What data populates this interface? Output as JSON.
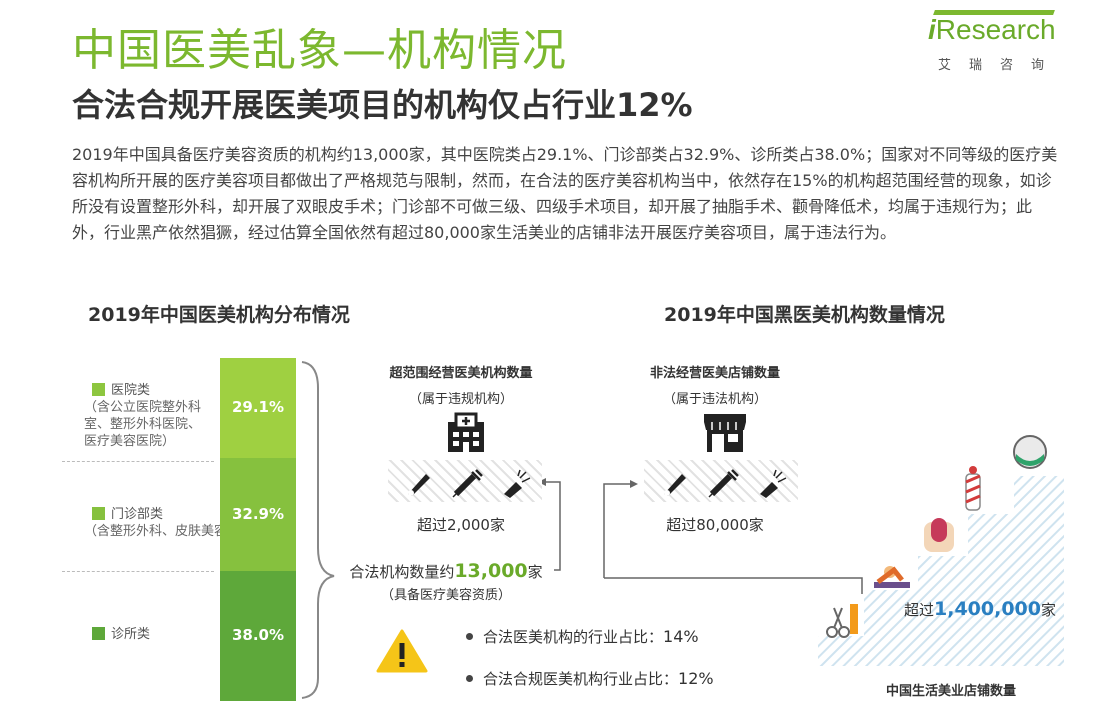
{
  "header": {
    "title": "中国医美乱象—机构情况",
    "subtitle": "合法合规开展医美项目的机构仅占行业12%",
    "logo_text": "Research",
    "logo_i": "i",
    "logo_cn": "艾瑞咨询"
  },
  "paragraph": "2019年中国具备医疗美容资质的机构约13,000家，其中医院类占29.1%、门诊部类占32.9%、诊所类占38.0%；国家对不同等级的医疗美容机构所开展的医疗美容项目都做出了严格规范与限制，然而，在合法的医疗美容机构当中，依然存在15%的机构超范围经营的现象，如诊所没有设置整形外科，却开展了双眼皮手术；门诊部不可做三级、四级手术项目，却开展了抽脂手术、颧骨降低术，均属于违规行为；此外，行业黑产依然猖獗，经过估算全国依然有超过80,000家生活美业的店铺非法开展医疗美容项目，属于违法行为。",
  "chart_data": [
    {
      "type": "bar",
      "title": "2019年中国医美机构分布情况",
      "stacked": true,
      "unit": "%",
      "categories": [
        "医院类",
        "门诊部类",
        "诊所类"
      ],
      "values": [
        29.1,
        32.9,
        38.0
      ],
      "value_labels": [
        "29.1%",
        "32.9%",
        "38.0%"
      ],
      "colors": [
        "#9fd041",
        "#86c13e",
        "#5ea83a"
      ],
      "legend": [
        {
          "label": "医院类",
          "note": "（含公立医院整外科室、整形外科医院、医疗美容医院）"
        },
        {
          "label": "门诊部类",
          "note": "（含整形外科、皮肤美容）"
        },
        {
          "label": "诊所类",
          "note": ""
        }
      ]
    },
    {
      "type": "diagram",
      "title": "2019年中国黑医美机构数量情况",
      "boxes": [
        {
          "heading": "超范围经营医美机构数量",
          "note": "（属于违规机构）",
          "value_text": "超过2,000家",
          "icon": "hospital-icon"
        },
        {
          "heading": "非法经营医美店铺数量",
          "note": "（属于违法机构）",
          "value_text": "超过80,000家",
          "icon": "shop-icon"
        },
        {
          "heading": "中国生活美业店铺数量",
          "note": "",
          "value_prefix": "超过",
          "value_num": "1,400,000",
          "value_suffix": "家",
          "icon": "beauty-icons"
        }
      ],
      "legal": {
        "prefix": "合法机构数量约",
        "num": "13,000",
        "suffix": "家",
        "note": "（具备医疗美容资质）"
      },
      "bullets": [
        {
          "label": "合法医美机构的行业占比：",
          "value": "14%"
        },
        {
          "label": "合法合规医美机构行业占比：",
          "value": "12%"
        }
      ],
      "warning_icon": "warning-icon"
    }
  ]
}
